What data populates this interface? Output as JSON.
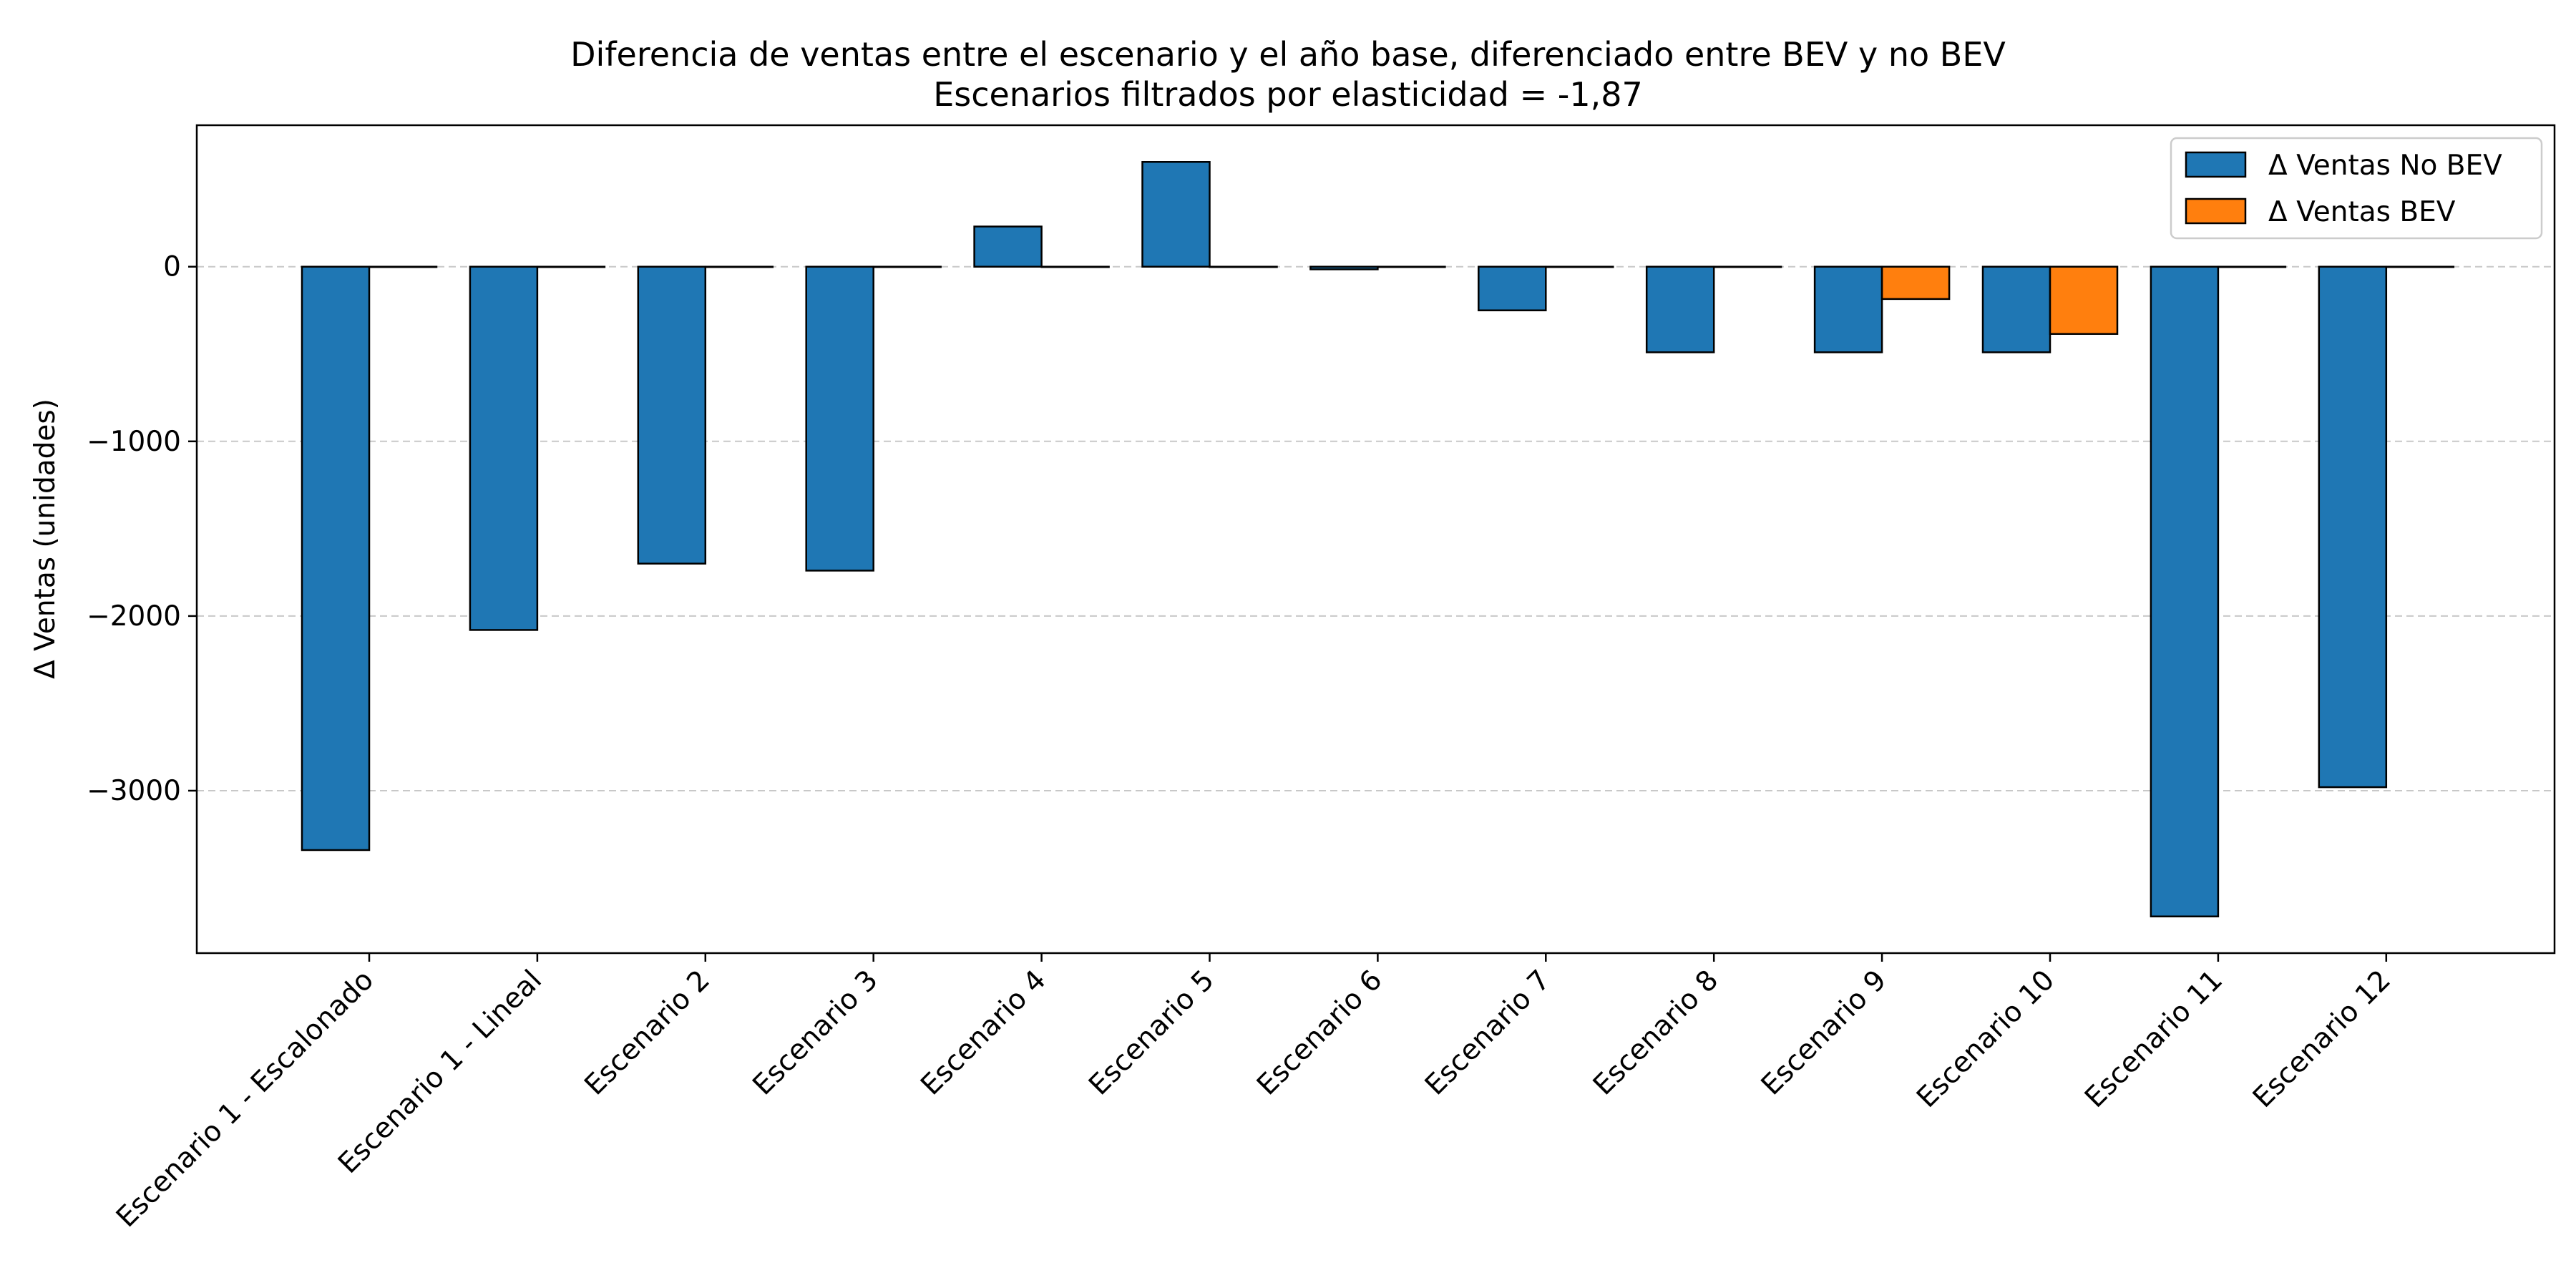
{
  "chart_data": {
    "type": "bar",
    "title": "Diferencia de ventas entre el escenario y el año base, diferenciado entre BEV y no BEV",
    "subtitle": "Escenarios filtrados por elasticidad = -1,87",
    "xlabel": "",
    "ylabel": "Δ Ventas (unidades)",
    "ylim": [
      -3930,
      810
    ],
    "yticks": [
      0,
      -1000,
      -2000,
      -3000
    ],
    "ytick_labels": [
      "0",
      "−1000",
      "−2000",
      "−3000"
    ],
    "grid": "y-dashed",
    "legend_position": "top-right",
    "categories": [
      "Escenario 1 - Escalonado",
      "Escenario 1 - Lineal",
      "Escenario 2",
      "Escenario 3",
      "Escenario 4",
      "Escenario 5",
      "Escenario 6",
      "Escenario 7",
      "Escenario 8",
      "Escenario 9",
      "Escenario 10",
      "Escenario 11",
      "Escenario 12"
    ],
    "series": [
      {
        "name": "Δ Ventas No BEV",
        "color": "#1f77b4",
        "values": [
          -3340,
          -2080,
          -1700,
          -1740,
          230,
          600,
          -15,
          -250,
          -490,
          -490,
          -490,
          -3720,
          -2980
        ]
      },
      {
        "name": "Δ Ventas BEV",
        "color": "#ff7f0e",
        "values": [
          0,
          0,
          0,
          0,
          0,
          0,
          0,
          0,
          0,
          -185,
          -385,
          0,
          0
        ]
      }
    ]
  }
}
